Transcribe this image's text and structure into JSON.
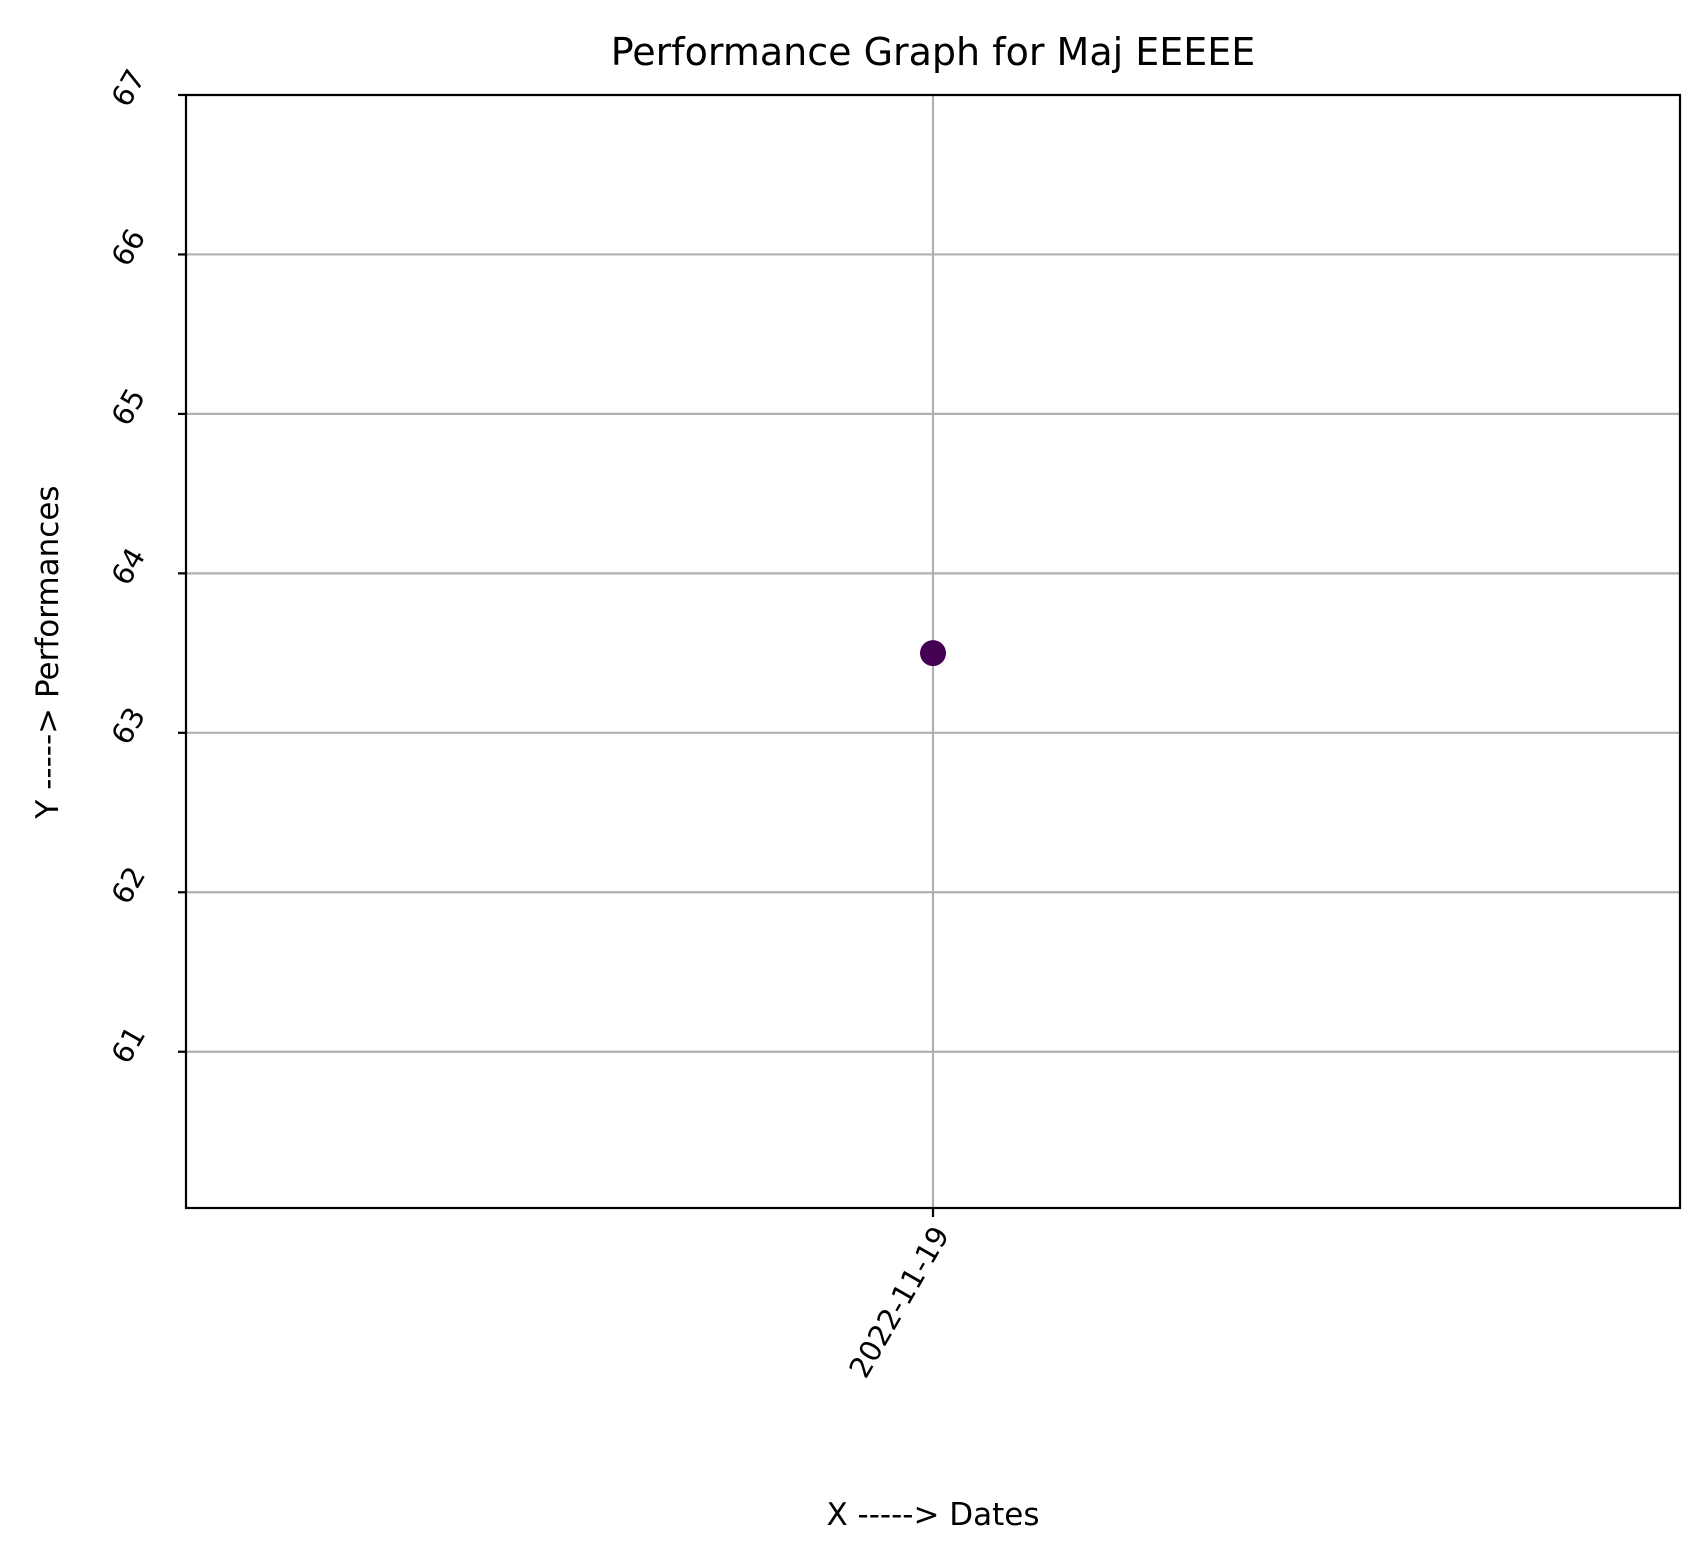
{
  "chart_data": {
    "type": "scatter",
    "title": "Performance Graph for Maj EEEEE",
    "xlabel": "X -----> Dates",
    "ylabel": "Y -----> Performances",
    "x_type": "category",
    "x_categories": [
      "2022-11-19"
    ],
    "y_ticks": [
      61,
      62,
      63,
      64,
      65,
      66,
      67
    ],
    "ylim": [
      60.02,
      67
    ],
    "grid": true,
    "points": [
      {
        "x": "2022-11-19",
        "y": 63.5,
        "color": "#440154"
      }
    ]
  }
}
